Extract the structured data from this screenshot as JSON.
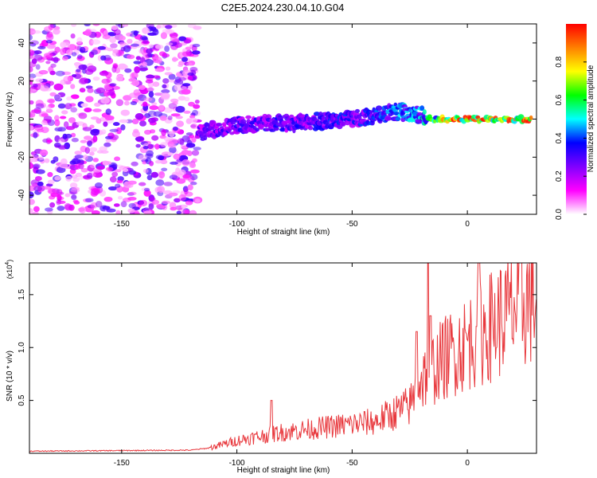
{
  "title": "C2E5.2024.230.04.10.G04",
  "chart_data": [
    {
      "type": "heatmap",
      "xlabel": "Height of straight line (km)",
      "ylabel": "Frequency (Hz)",
      "xlim": [
        -190,
        30
      ],
      "ylim": [
        -50,
        50
      ],
      "xticks": [
        -150,
        -100,
        -50,
        0
      ],
      "xtick_labels": [
        "-150",
        "-100",
        "-50",
        "0"
      ],
      "yticks": [
        -40,
        -20,
        0,
        20,
        40
      ],
      "ytick_labels": [
        "-40",
        "-20",
        "0",
        "20",
        "40"
      ],
      "colorbar": {
        "label": "Normalized spectral amplitude",
        "range": [
          0,
          1
        ],
        "ticks": [
          0.0,
          0.2,
          0.4,
          0.6,
          0.8
        ],
        "tick_labels": [
          "0.0",
          "0.2",
          "0.4",
          "0.6",
          "0.8"
        ],
        "colormap": [
          "#ffffff",
          "#ff00ff",
          "#8000ff",
          "#0000ff",
          "#00ffff",
          "#00ff00",
          "#ffff00",
          "#ff8000",
          "#ff0000"
        ]
      },
      "noise_region": {
        "x": [
          -190,
          -117
        ],
        "y": [
          -50,
          50
        ],
        "typical_amplitude": 0.25
      },
      "signal_trend": [
        {
          "x": -120,
          "y": -8
        },
        {
          "x": -100,
          "y": -3
        },
        {
          "x": -75,
          "y": -2
        },
        {
          "x": -50,
          "y": 0
        },
        {
          "x": -30,
          "y": 4
        },
        {
          "x": -20,
          "y": 2
        },
        {
          "x": -15,
          "y": 0
        },
        {
          "x": 0,
          "y": 0
        },
        {
          "x": 30,
          "y": 0
        }
      ],
      "signal_amplitude": [
        {
          "x": -115,
          "amp": 0.25
        },
        {
          "x": -100,
          "amp": 0.3
        },
        {
          "x": -70,
          "amp": 0.3
        },
        {
          "x": -40,
          "amp": 0.35
        },
        {
          "x": -20,
          "amp": 0.45
        },
        {
          "x": -10,
          "amp": 0.75
        },
        {
          "x": 0,
          "amp": 0.85
        },
        {
          "x": 30,
          "amp": 0.8
        }
      ]
    },
    {
      "type": "line",
      "xlabel": "Height of straight line (km)",
      "ylabel": "SNR (10 * v/v)",
      "scale_note": "(x10",
      "scale_exponent": "4",
      "xlim": [
        -190,
        30
      ],
      "ylim": [
        0,
        1.8
      ],
      "xticks": [
        -150,
        -100,
        -50,
        0
      ],
      "xtick_labels": [
        "-150",
        "-100",
        "-50",
        "0"
      ],
      "yticks": [
        0.5,
        1.0,
        1.5
      ],
      "ytick_labels": [
        "0.5",
        "1.0",
        "1.5"
      ],
      "color": "#e8383d",
      "series": [
        {
          "envelope_x": [
            -190,
            -120,
            -112,
            -100,
            -80,
            -60,
            -40,
            -25,
            -20,
            -15,
            -10,
            0,
            10,
            20,
            30
          ],
          "envelope_y": [
            0.02,
            0.03,
            0.05,
            0.12,
            0.2,
            0.25,
            0.3,
            0.45,
            0.7,
            0.8,
            0.9,
            1.05,
            1.2,
            1.35,
            1.5
          ],
          "spikes": [
            {
              "x": -17,
              "y": 1.82
            },
            {
              "x": -16,
              "y": 1.3
            },
            {
              "x": -22,
              "y": 1.15
            },
            {
              "x": -85,
              "y": 0.5
            },
            {
              "x": 5,
              "y": 1.85
            },
            {
              "x": 4,
              "y": 1.2
            }
          ]
        }
      ]
    }
  ]
}
